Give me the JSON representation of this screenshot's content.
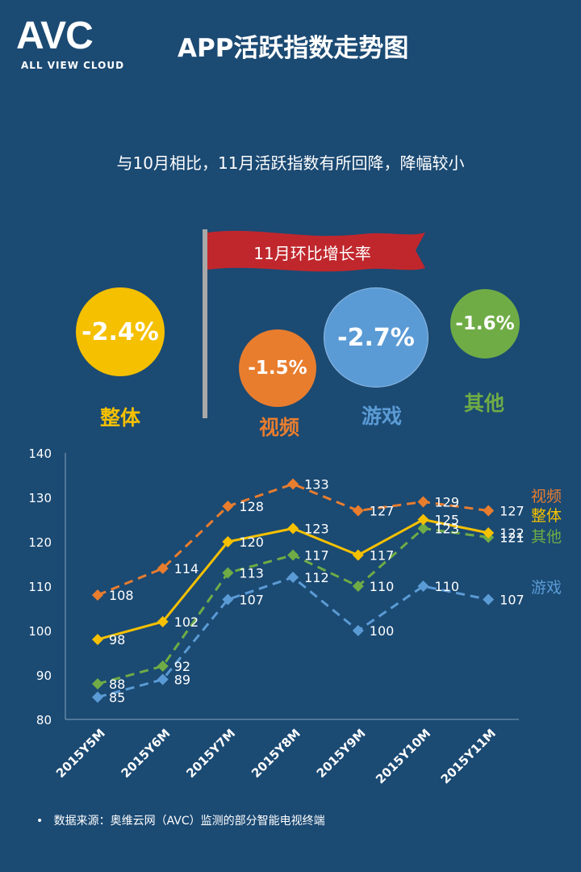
{
  "header": {
    "logo": "AVC",
    "logo_tagline": "ALL VIEW CLOUD",
    "title": "APP活跃指数走势图"
  },
  "subtitle": "与10月相比，11月活跃指数有所回降，降幅较小",
  "flag_label": "11月环比增长率",
  "growth": [
    {
      "name": "整体",
      "value": "-2.4%",
      "color": "#f5c000"
    },
    {
      "name": "视频",
      "value": "-1.5%",
      "color": "#e87d2e"
    },
    {
      "name": "游戏",
      "value": "-2.7%",
      "color": "#5b9bd5"
    },
    {
      "name": "其他",
      "value": "-1.6%",
      "color": "#6fac46"
    }
  ],
  "chart_data": {
    "type": "line",
    "categories": [
      "2015Y5M",
      "2015Y6M",
      "2015Y7M",
      "2015Y8M",
      "2015Y9M",
      "2015Y10M",
      "2015Y11M"
    ],
    "ylim": [
      80,
      140
    ],
    "yticks": [
      80,
      90,
      100,
      110,
      120,
      130,
      140
    ],
    "series": [
      {
        "name": "视频",
        "values": [
          108,
          114,
          128,
          133,
          127,
          129,
          127
        ],
        "color": "#e87d2e",
        "dashed": true
      },
      {
        "name": "整体",
        "values": [
          98,
          102,
          120,
          123,
          117,
          125,
          122
        ],
        "color": "#f5c000",
        "dashed": false
      },
      {
        "name": "其他",
        "values": [
          88,
          92,
          113,
          117,
          110,
          123,
          121
        ],
        "color": "#6fac46",
        "dashed": true
      },
      {
        "name": "游戏",
        "values": [
          85,
          89,
          107,
          112,
          100,
          110,
          107
        ],
        "color": "#5b9bd5",
        "dashed": true
      }
    ]
  },
  "footnote": "数据来源：奥维云网（AVC）监测的部分智能电视终端"
}
